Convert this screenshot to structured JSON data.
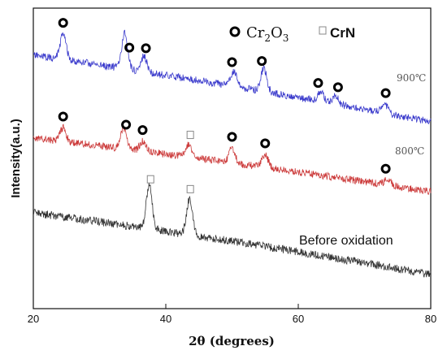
{
  "chart_data": {
    "type": "line",
    "xlabel": "2θ (degrees)",
    "ylabel": "Intensity(a.u.)",
    "xlim": [
      20,
      80
    ],
    "xticks": [
      "20",
      "40",
      "60",
      "80"
    ],
    "grid": false,
    "legend_position": "top-right",
    "legend": [
      {
        "name": "Cr",
        "sub1": "2",
        "mid": "O",
        "sub2": "3",
        "marker": "circle"
      },
      {
        "name": "CrN",
        "marker": "square"
      }
    ],
    "series": [
      {
        "name": "900℃",
        "color": "#3b3bcc",
        "peaks": [
          [
            24.5,
            2.6
          ],
          [
            33.8,
            3.6
          ],
          [
            36.7,
            1.6
          ],
          [
            50.3,
            1.6
          ],
          [
            54.8,
            2.4
          ],
          [
            63.4,
            1.0
          ],
          [
            65.6,
            0.9
          ],
          [
            73.0,
            1.0
          ]
        ],
        "markers": [
          {
            "x": 24.5,
            "type": "circle"
          },
          {
            "x": 34.5,
            "type": "circle"
          },
          {
            "x": 37.0,
            "type": "circle"
          },
          {
            "x": 50.0,
            "type": "circle"
          },
          {
            "x": 54.5,
            "type": "circle"
          },
          {
            "x": 63.0,
            "type": "circle"
          },
          {
            "x": 66.0,
            "type": "circle"
          },
          {
            "x": 73.2,
            "type": "circle"
          }
        ]
      },
      {
        "name": "800℃",
        "color": "#cc3b3b",
        "peaks": [
          [
            24.5,
            1.4
          ],
          [
            33.6,
            2.0
          ],
          [
            36.5,
            1.0
          ],
          [
            43.5,
            1.3
          ],
          [
            50.0,
            1.5
          ],
          [
            55.0,
            1.3
          ],
          [
            73.5,
            0.6
          ]
        ],
        "markers": [
          {
            "x": 24.5,
            "type": "circle"
          },
          {
            "x": 34.0,
            "type": "circle"
          },
          {
            "x": 36.5,
            "type": "circle"
          },
          {
            "x": 43.7,
            "type": "square"
          },
          {
            "x": 50.0,
            "type": "circle"
          },
          {
            "x": 55.0,
            "type": "circle"
          },
          {
            "x": 73.2,
            "type": "circle"
          }
        ]
      },
      {
        "name": "Before oxidation",
        "color": "#333333",
        "peaks": [
          [
            37.5,
            4.8
          ],
          [
            43.6,
            4.0
          ]
        ],
        "markers": [
          {
            "x": 37.7,
            "type": "square"
          },
          {
            "x": 43.7,
            "type": "square"
          }
        ]
      }
    ]
  }
}
